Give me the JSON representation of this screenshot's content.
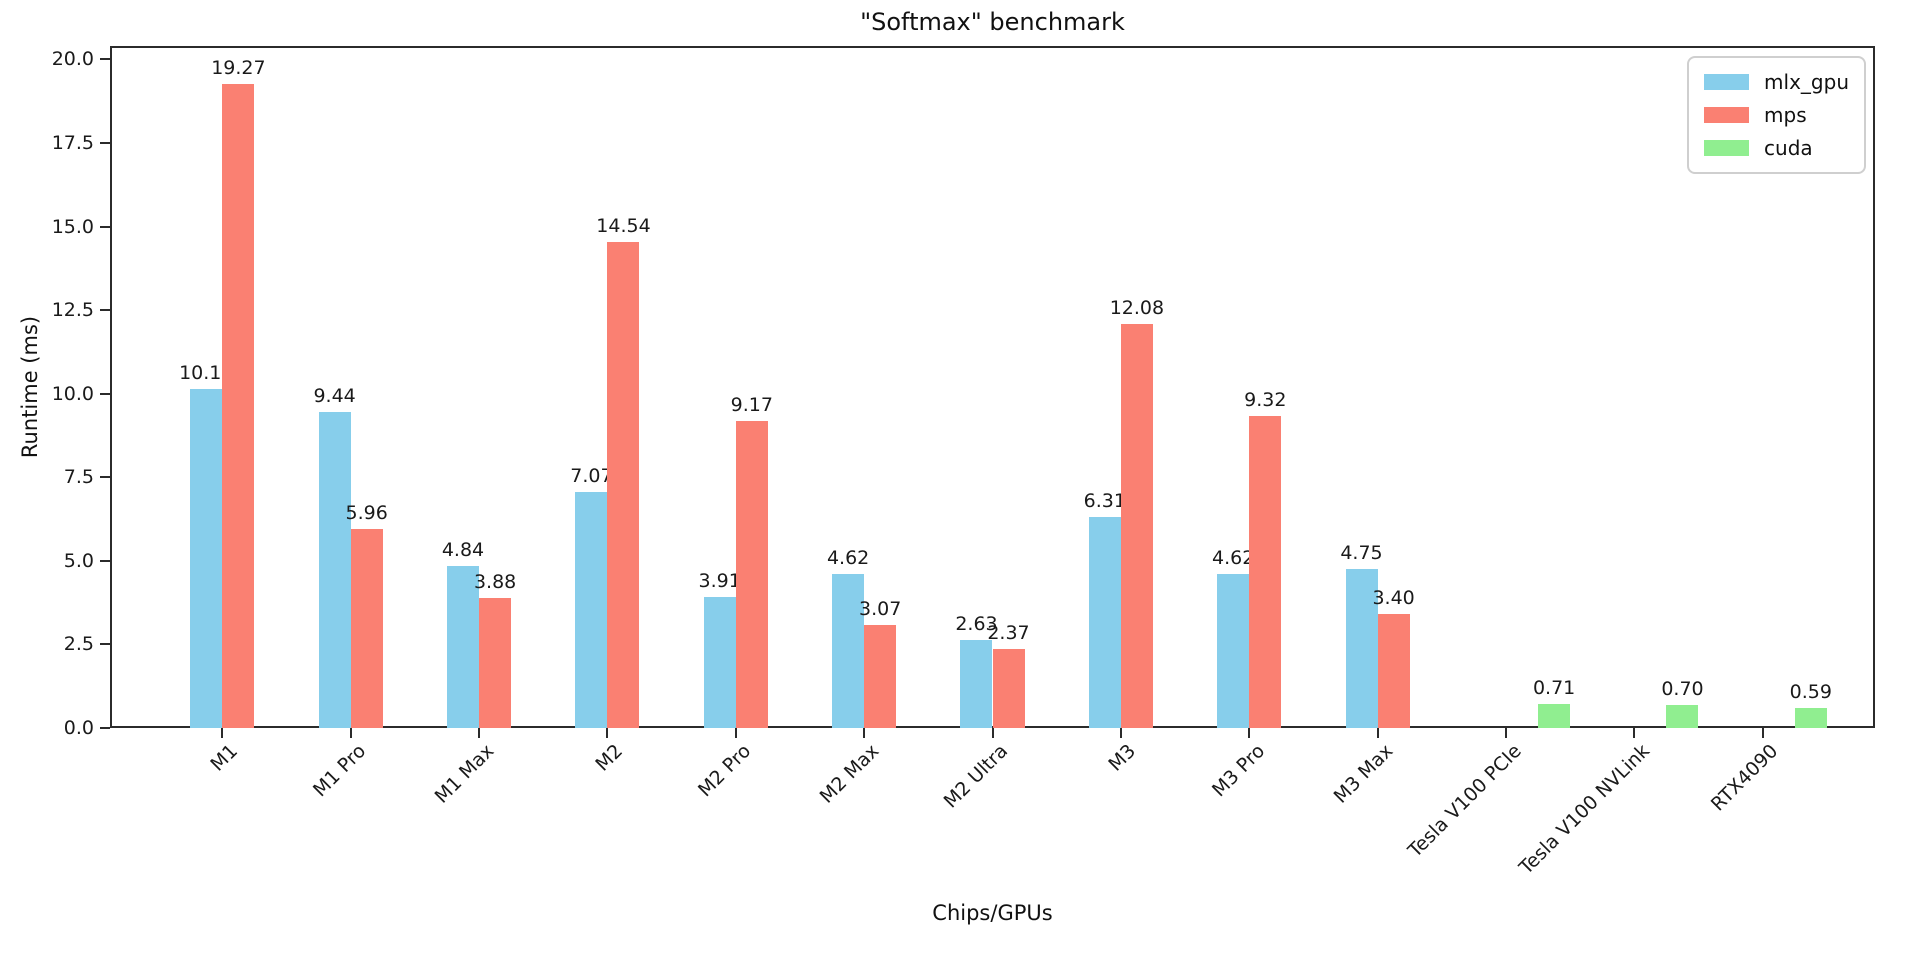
{
  "title": "\"Softmax\" benchmark",
  "chart_data": {
    "type": "bar",
    "title": "\"Softmax\" benchmark",
    "xlabel": "Chips/GPUs",
    "ylabel": "Runtime (ms)",
    "ylim": [
      0,
      20.4
    ],
    "yticks": [
      0,
      2.5,
      5.0,
      7.5,
      10.0,
      12.5,
      15.0,
      17.5,
      20.0
    ],
    "grid": false,
    "legend_position": "upper right",
    "bar_value_labels": true,
    "categories": [
      "M1",
      "M1 Pro",
      "M1 Max",
      "M2",
      "M2 Pro",
      "M2 Max",
      "M2 Ultra",
      "M3",
      "M3 Pro",
      "M3 Max",
      "Tesla V100 PCIe",
      "Tesla V100 NVLink",
      "RTX4090"
    ],
    "series": [
      {
        "name": "mlx_gpu",
        "color": "#87CEEB",
        "values": [
          10.15,
          9.44,
          4.84,
          7.07,
          3.91,
          4.62,
          2.63,
          6.31,
          4.62,
          4.75,
          null,
          null,
          null
        ]
      },
      {
        "name": "mps",
        "color": "#FA8072",
        "values": [
          19.27,
          5.96,
          3.88,
          14.54,
          9.17,
          3.07,
          2.37,
          12.08,
          9.32,
          3.4,
          null,
          null,
          null
        ]
      },
      {
        "name": "cuda",
        "color": "#90EE90",
        "values": [
          null,
          null,
          null,
          null,
          null,
          null,
          null,
          null,
          null,
          null,
          0.71,
          0.7,
          0.59
        ]
      }
    ]
  }
}
